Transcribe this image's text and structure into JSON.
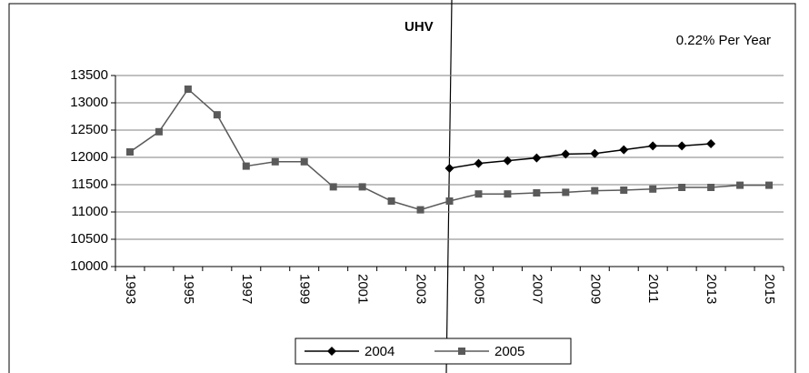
{
  "chart_data": {
    "type": "line",
    "annotations": [
      "UHV",
      "0.22% Per Year"
    ],
    "categories": [
      "1993",
      null,
      "1995",
      null,
      "1997",
      null,
      "1999",
      null,
      "2001",
      null,
      "2003",
      null,
      "2005",
      null,
      "2007",
      null,
      "2009",
      null,
      "2011",
      null,
      "2013",
      null,
      "2015"
    ],
    "series": [
      {
        "name": "2004",
        "color": "#000000",
        "marker": "diamond",
        "values": [
          null,
          null,
          null,
          null,
          null,
          null,
          null,
          null,
          null,
          null,
          null,
          11800,
          11890,
          11940,
          11990,
          12060,
          12070,
          12140,
          12210,
          12210,
          12250,
          null,
          null
        ]
      },
      {
        "name": "2005",
        "color": "#5a5a5a",
        "marker": "square",
        "values": [
          12100,
          12470,
          13250,
          12780,
          11840,
          11920,
          11920,
          11460,
          11460,
          11200,
          11040,
          11200,
          11330,
          11330,
          11350,
          11360,
          11390,
          11400,
          11420,
          11450,
          11450,
          11490,
          11490
        ]
      }
    ],
    "ylim": [
      10000,
      13500
    ],
    "yticks": [
      10000,
      10500,
      11000,
      11500,
      12000,
      12500,
      13000,
      13500
    ],
    "grid": true,
    "legend": "bottom"
  }
}
